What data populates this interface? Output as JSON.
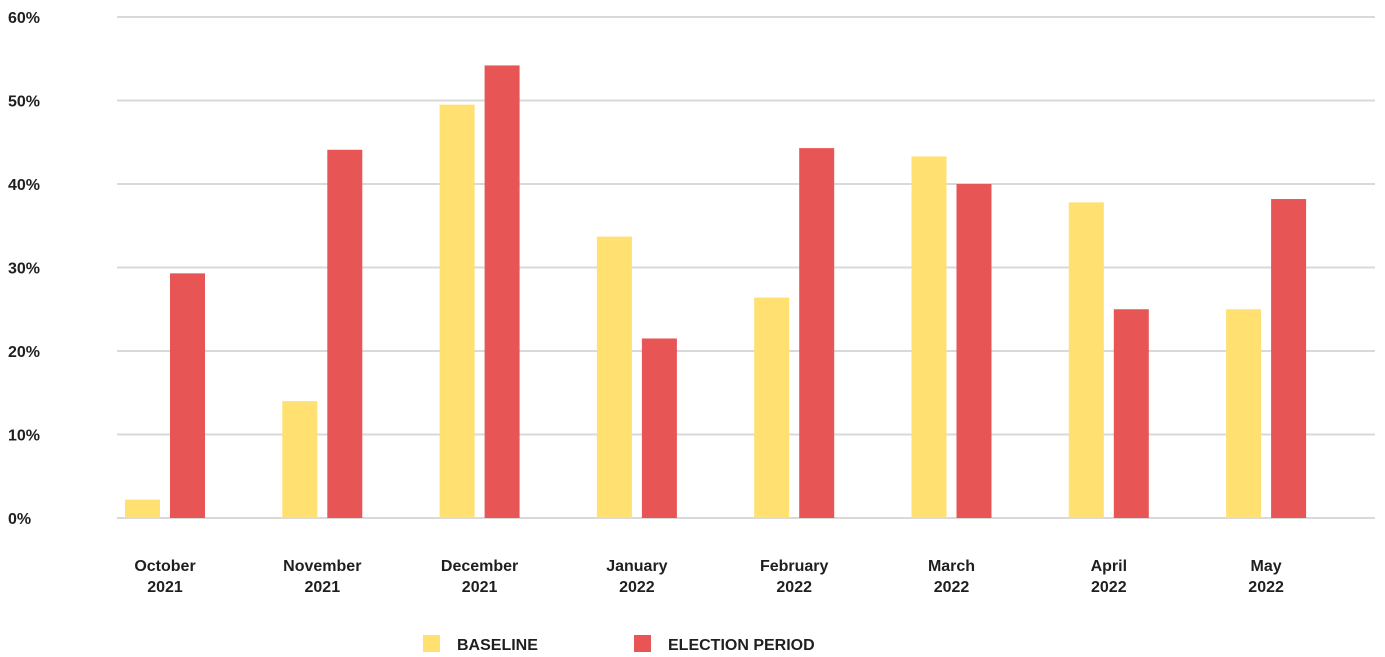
{
  "chart_data": {
    "type": "bar",
    "title": "",
    "xlabel": "",
    "ylabel": "",
    "categories": [
      [
        "October",
        "2021"
      ],
      [
        "November",
        "2021"
      ],
      [
        "December",
        "2021"
      ],
      [
        "January",
        "2022"
      ],
      [
        "February",
        "2022"
      ],
      [
        "March",
        "2022"
      ],
      [
        "April",
        "2022"
      ],
      [
        "May",
        "2022"
      ]
    ],
    "series": [
      {
        "name": "BASELINE",
        "color": "#FFE070",
        "values": [
          2.2,
          14.0,
          49.5,
          33.7,
          26.4,
          43.3,
          37.8,
          25.0
        ]
      },
      {
        "name": "ELECTION PERIOD",
        "color": "#E85555",
        "values": [
          29.3,
          44.1,
          54.2,
          21.5,
          44.3,
          40.0,
          25.0,
          38.2
        ]
      }
    ],
    "ylim": [
      0,
      60
    ],
    "yticks": [
      "0%",
      "10%",
      "20%",
      "30%",
      "40%",
      "50%",
      "60%"
    ],
    "grid": true,
    "legend_position": "bottom-center"
  }
}
